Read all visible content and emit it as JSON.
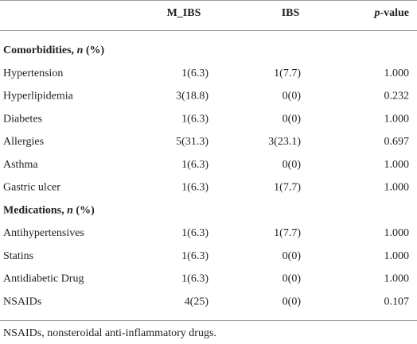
{
  "table": {
    "columns": [
      "M_IBS",
      "IBS"
    ],
    "pvalue_header": {
      "italic": "p",
      "text": "-value"
    },
    "sections": [
      {
        "title": {
          "text": "Comorbidities, ",
          "italic": "n",
          "suffix": " (%)"
        },
        "rows": [
          [
            "Hypertension",
            "1(6.3)",
            "1(7.7)",
            "1.000"
          ],
          [
            "Hyperlipidemia",
            "3(18.8)",
            "0(0)",
            "0.232"
          ],
          [
            "Diabetes",
            "1(6.3)",
            "0(0)",
            "1.000"
          ],
          [
            "Allergies",
            "5(31.3)",
            "3(23.1)",
            "0.697"
          ],
          [
            "Asthma",
            "1(6.3)",
            "0(0)",
            "1.000"
          ],
          [
            "Gastric ulcer",
            "1(6.3)",
            "1(7.7)",
            "1.000"
          ]
        ]
      },
      {
        "title": {
          "text": "Medications, ",
          "italic": "n",
          "suffix": " (%)"
        },
        "rows": [
          [
            "Antihypertensives",
            "1(6.3)",
            "1(7.7)",
            "1.000"
          ],
          [
            "Statins",
            "1(6.3)",
            "0(0)",
            "1.000"
          ],
          [
            "Antidiabetic Drug",
            "1(6.3)",
            "0(0)",
            "1.000"
          ],
          [
            "NSAIDs",
            "4(25)",
            "0(0)",
            "0.107"
          ]
        ]
      }
    ],
    "footnote": "NSAIDs, nonsteroidal anti-inflammatory drugs."
  }
}
